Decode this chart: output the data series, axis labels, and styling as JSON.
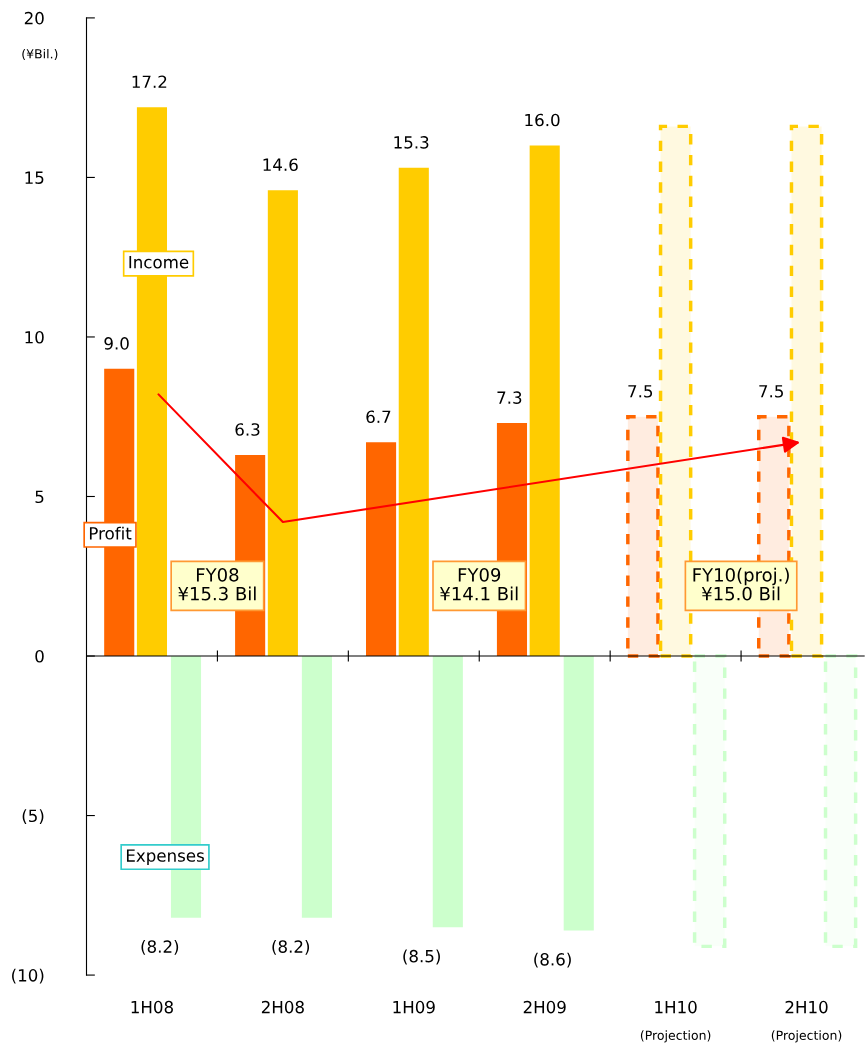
{
  "chart_data": {
    "type": "bar",
    "categories": [
      "1H08",
      "2H08",
      "1H09",
      "2H09",
      "1H10\n(Projection)",
      "2H10\n(Projection)"
    ],
    "ylabel": "(¥Bil.)",
    "ylim": [
      -10,
      20
    ],
    "yticks": [
      {
        "value": -10,
        "label": "(10)"
      },
      {
        "value": -5,
        "label": "(5)"
      },
      0,
      5,
      10,
      15,
      20
    ],
    "series": [
      {
        "name": "Profit",
        "color": "#ff6600",
        "values": [
          9.0,
          6.3,
          6.7,
          7.3,
          null,
          null
        ],
        "value_labels": [
          "9.0",
          "6.3",
          "6.7",
          "7.3",
          null,
          null
        ]
      },
      {
        "name": "Income",
        "color": "#ffcc00",
        "values": [
          17.2,
          14.6,
          15.3,
          16.0,
          null,
          null
        ],
        "value_labels": [
          "17.2",
          "14.6",
          "15.3",
          "16.0",
          null,
          null
        ]
      },
      {
        "name": "Expenses",
        "color": "#ccffcc",
        "values": [
          -8.2,
          -8.2,
          -8.5,
          -8.6,
          null,
          null
        ],
        "value_labels": [
          "(8.2)",
          "(8.2)",
          "(8.5)",
          "(8.6)",
          null,
          null
        ]
      },
      {
        "color": "#ff6600",
        "line_style": "dashed",
        "values": [
          null,
          null,
          null,
          null,
          7.5,
          7.5
        ],
        "value_labels": [
          null,
          null,
          null,
          null,
          "7.5",
          "7.5"
        ]
      },
      {
        "color": "#ffcc00",
        "line_style": "dashed",
        "values": [
          null,
          null,
          null,
          null,
          16.6,
          16.6
        ]
      },
      {
        "color": "#ccffcc",
        "line_style": "dashed",
        "values": [
          null,
          null,
          null,
          null,
          -9.1,
          -9.1
        ]
      }
    ],
    "annotations": [
      "FY08\n¥15.3 Bil",
      "FY09\n¥14.1 Bil",
      "FY10(proj.)\n¥15.0 Bil"
    ]
  }
}
